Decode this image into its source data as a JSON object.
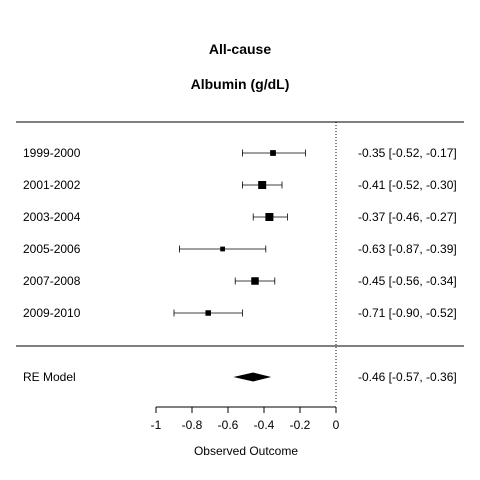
{
  "chart_data": {
    "type": "forest",
    "title": "All-cause",
    "subtitle": "Albumin (g/dL)",
    "xlabel": "Observed Outcome",
    "xlim": [
      -1,
      0
    ],
    "xticks": [
      -1,
      -0.8,
      -0.6,
      -0.4,
      -0.2,
      0
    ],
    "xtick_labels": [
      "-1",
      "-0.8",
      "-0.6",
      "-0.4",
      "-0.2",
      "0"
    ],
    "reference_line": 0,
    "studies": [
      {
        "label": "1999-2000",
        "estimate": -0.35,
        "ci_low": -0.52,
        "ci_high": -0.17,
        "annotation": "-0.35 [-0.52, -0.17]",
        "weight": 0.55
      },
      {
        "label": "2001-2002",
        "estimate": -0.41,
        "ci_low": -0.52,
        "ci_high": -0.3,
        "annotation": "-0.41 [-0.52, -0.30]",
        "weight": 1.0
      },
      {
        "label": "2003-2004",
        "estimate": -0.37,
        "ci_low": -0.46,
        "ci_high": -0.27,
        "annotation": "-0.37 [-0.46, -0.27]",
        "weight": 1.0
      },
      {
        "label": "2005-2006",
        "estimate": -0.63,
        "ci_low": -0.87,
        "ci_high": -0.39,
        "annotation": "-0.63 [-0.87, -0.39]",
        "weight": 0.35
      },
      {
        "label": "2007-2008",
        "estimate": -0.45,
        "ci_low": -0.56,
        "ci_high": -0.34,
        "annotation": "-0.45 [-0.56, -0.34]",
        "weight": 0.9
      },
      {
        "label": "2009-2010",
        "estimate": -0.71,
        "ci_low": -0.9,
        "ci_high": -0.52,
        "annotation": "-0.71 [-0.90, -0.52]",
        "weight": 0.5
      }
    ],
    "summary": {
      "label": "RE Model",
      "estimate": -0.46,
      "ci_low": -0.57,
      "ci_high": -0.36,
      "annotation": "-0.46 [-0.57, -0.36]"
    },
    "grid": false,
    "colors": {
      "marks": "#000000",
      "lines": "#000000",
      "background": "#ffffff"
    }
  }
}
